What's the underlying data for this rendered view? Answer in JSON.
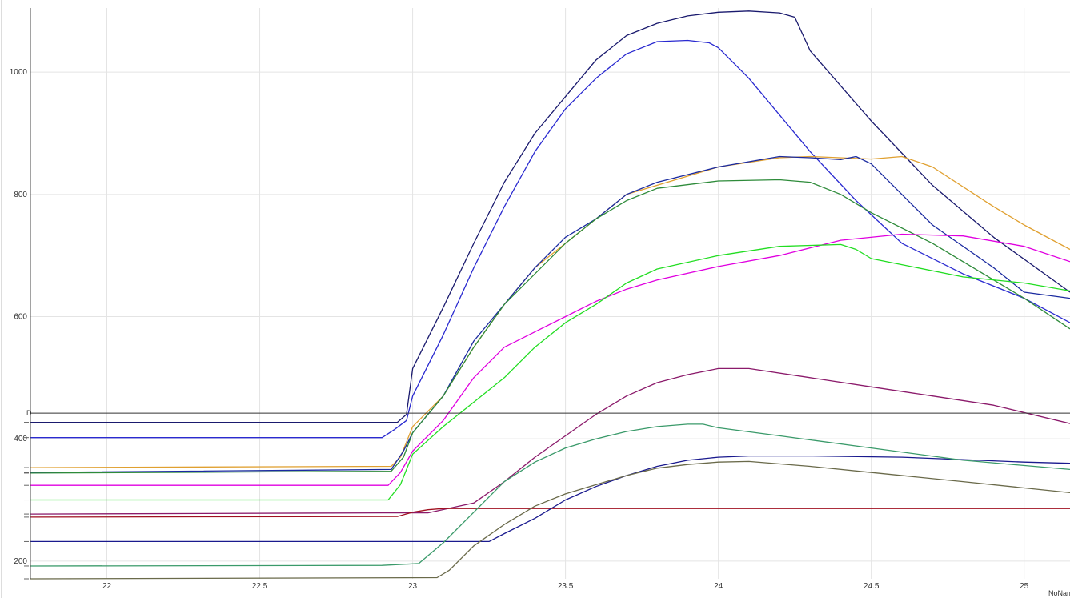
{
  "chart_data": {
    "type": "line",
    "xlim": [
      21.75,
      25.15
    ],
    "ylim": [
      171,
      1105
    ],
    "grid": true,
    "x_ticks": [
      22,
      22.5,
      23,
      23.5,
      24,
      24.5,
      25
    ],
    "y_ticks": [
      200,
      400,
      600,
      800,
      1000
    ],
    "x_tick_labels": [
      "22",
      "22.5",
      "23",
      "23.5",
      "24",
      "24.5",
      "25"
    ],
    "y_tick_labels": [
      "200",
      "400",
      "600",
      "800",
      "1000"
    ],
    "cursor_y": 442,
    "cursor_label": "D",
    "corner_label": "NoNam",
    "series": [
      {
        "color": "#1a1a6e",
        "points": [
          [
            21.75,
            427
          ],
          [
            22.95,
            427
          ],
          [
            22.98,
            440
          ],
          [
            23.0,
            515
          ],
          [
            23.1,
            615
          ],
          [
            23.2,
            720
          ],
          [
            23.3,
            820
          ],
          [
            23.4,
            900
          ],
          [
            23.5,
            960
          ],
          [
            23.6,
            1020
          ],
          [
            23.7,
            1060
          ],
          [
            23.8,
            1080
          ],
          [
            23.9,
            1092
          ],
          [
            24.0,
            1098
          ],
          [
            24.1,
            1100
          ],
          [
            24.2,
            1097
          ],
          [
            24.25,
            1090
          ],
          [
            24.3,
            1035
          ],
          [
            24.5,
            920
          ],
          [
            24.7,
            815
          ],
          [
            24.9,
            730
          ],
          [
            25.15,
            640
          ]
        ]
      },
      {
        "color": "#2a2ad0",
        "points": [
          [
            21.75,
            402
          ],
          [
            22.9,
            402
          ],
          [
            22.94,
            415
          ],
          [
            22.98,
            430
          ],
          [
            23.0,
            470
          ],
          [
            23.1,
            570
          ],
          [
            23.2,
            680
          ],
          [
            23.3,
            780
          ],
          [
            23.4,
            870
          ],
          [
            23.5,
            940
          ],
          [
            23.6,
            990
          ],
          [
            23.7,
            1030
          ],
          [
            23.8,
            1050
          ],
          [
            23.9,
            1052
          ],
          [
            23.97,
            1048
          ],
          [
            24.0,
            1040
          ],
          [
            24.1,
            990
          ],
          [
            24.2,
            930
          ],
          [
            24.3,
            870
          ],
          [
            24.45,
            790
          ],
          [
            24.6,
            720
          ],
          [
            24.8,
            670
          ],
          [
            25.0,
            630
          ],
          [
            25.15,
            590
          ]
        ]
      },
      {
        "color": "#e0a030",
        "points": [
          [
            21.75,
            353
          ],
          [
            22.93,
            355
          ],
          [
            22.96,
            370
          ],
          [
            23.0,
            420
          ],
          [
            23.1,
            470
          ],
          [
            23.2,
            550
          ],
          [
            23.3,
            620
          ],
          [
            23.4,
            680
          ],
          [
            23.5,
            720
          ],
          [
            23.6,
            760
          ],
          [
            23.7,
            800
          ],
          [
            23.8,
            815
          ],
          [
            24.0,
            845
          ],
          [
            24.2,
            860
          ],
          [
            24.3,
            862
          ],
          [
            24.5,
            858
          ],
          [
            24.6,
            862
          ],
          [
            24.7,
            845
          ],
          [
            24.9,
            780
          ],
          [
            25.0,
            750
          ],
          [
            25.15,
            710
          ]
        ]
      },
      {
        "color": "#1a2aa0",
        "points": [
          [
            21.75,
            345
          ],
          [
            22.93,
            350
          ],
          [
            22.97,
            380
          ],
          [
            23.0,
            410
          ],
          [
            23.1,
            470
          ],
          [
            23.2,
            560
          ],
          [
            23.3,
            620
          ],
          [
            23.4,
            680
          ],
          [
            23.5,
            730
          ],
          [
            23.6,
            760
          ],
          [
            23.7,
            800
          ],
          [
            23.8,
            820
          ],
          [
            24.0,
            845
          ],
          [
            24.2,
            862
          ],
          [
            24.3,
            860
          ],
          [
            24.4,
            857
          ],
          [
            24.45,
            862
          ],
          [
            24.5,
            850
          ],
          [
            24.7,
            750
          ],
          [
            24.9,
            680
          ],
          [
            25.0,
            640
          ],
          [
            25.15,
            630
          ]
        ]
      },
      {
        "color": "#2e8b3a",
        "points": [
          [
            21.75,
            344
          ],
          [
            22.93,
            347
          ],
          [
            22.97,
            370
          ],
          [
            23.0,
            410
          ],
          [
            23.1,
            470
          ],
          [
            23.2,
            550
          ],
          [
            23.3,
            620
          ],
          [
            23.4,
            670
          ],
          [
            23.5,
            720
          ],
          [
            23.6,
            760
          ],
          [
            23.7,
            790
          ],
          [
            23.8,
            810
          ],
          [
            24.0,
            822
          ],
          [
            24.2,
            824
          ],
          [
            24.3,
            820
          ],
          [
            24.4,
            800
          ],
          [
            24.5,
            770
          ],
          [
            24.7,
            720
          ],
          [
            24.9,
            660
          ],
          [
            25.0,
            630
          ],
          [
            25.15,
            580
          ]
        ]
      },
      {
        "color": "#e000e0",
        "points": [
          [
            21.75,
            324
          ],
          [
            22.92,
            324
          ],
          [
            22.96,
            345
          ],
          [
            23.0,
            380
          ],
          [
            23.1,
            430
          ],
          [
            23.2,
            500
          ],
          [
            23.3,
            550
          ],
          [
            23.4,
            575
          ],
          [
            23.5,
            600
          ],
          [
            23.6,
            625
          ],
          [
            23.7,
            645
          ],
          [
            23.8,
            660
          ],
          [
            24.0,
            682
          ],
          [
            24.2,
            700
          ],
          [
            24.4,
            725
          ],
          [
            24.6,
            735
          ],
          [
            24.8,
            732
          ],
          [
            25.0,
            715
          ],
          [
            25.15,
            690
          ]
        ]
      },
      {
        "color": "#22dd22",
        "points": [
          [
            21.75,
            300
          ],
          [
            22.92,
            300
          ],
          [
            22.96,
            325
          ],
          [
            23.0,
            375
          ],
          [
            23.1,
            420
          ],
          [
            23.2,
            460
          ],
          [
            23.3,
            500
          ],
          [
            23.4,
            550
          ],
          [
            23.5,
            590
          ],
          [
            23.6,
            620
          ],
          [
            23.7,
            655
          ],
          [
            23.8,
            678
          ],
          [
            24.0,
            700
          ],
          [
            24.2,
            715
          ],
          [
            24.4,
            718
          ],
          [
            24.45,
            710
          ],
          [
            24.5,
            695
          ],
          [
            24.6,
            685
          ],
          [
            24.8,
            665
          ],
          [
            25.0,
            655
          ],
          [
            25.15,
            642
          ]
        ]
      },
      {
        "color": "#8b1a6b",
        "points": [
          [
            21.75,
            277
          ],
          [
            22.9,
            279
          ],
          [
            23.05,
            279
          ],
          [
            23.2,
            295
          ],
          [
            23.3,
            330
          ],
          [
            23.4,
            370
          ],
          [
            23.5,
            405
          ],
          [
            23.6,
            440
          ],
          [
            23.7,
            470
          ],
          [
            23.8,
            492
          ],
          [
            23.9,
            505
          ],
          [
            24.0,
            515
          ],
          [
            24.1,
            515
          ],
          [
            24.3,
            500
          ],
          [
            24.5,
            485
          ],
          [
            24.7,
            470
          ],
          [
            24.9,
            455
          ],
          [
            25.15,
            425
          ]
        ]
      },
      {
        "color": "#a01020",
        "points": [
          [
            21.75,
            272
          ],
          [
            22.95,
            273
          ],
          [
            23.0,
            280
          ],
          [
            23.05,
            284
          ],
          [
            23.1,
            286
          ],
          [
            25.15,
            286
          ]
        ]
      },
      {
        "color": "#1a1a8e",
        "points": [
          [
            21.75,
            232
          ],
          [
            23.2,
            232
          ],
          [
            23.25,
            232
          ],
          [
            23.3,
            245
          ],
          [
            23.4,
            270
          ],
          [
            23.5,
            300
          ],
          [
            23.6,
            322
          ],
          [
            23.7,
            340
          ],
          [
            23.8,
            355
          ],
          [
            23.9,
            365
          ],
          [
            24.0,
            370
          ],
          [
            24.1,
            372
          ],
          [
            24.3,
            372
          ],
          [
            24.6,
            370
          ],
          [
            24.8,
            366
          ],
          [
            25.0,
            362
          ],
          [
            25.15,
            360
          ]
        ]
      },
      {
        "color": "#3a9a6a",
        "points": [
          [
            21.75,
            192
          ],
          [
            22.9,
            193
          ],
          [
            23.02,
            196
          ],
          [
            23.1,
            230
          ],
          [
            23.2,
            280
          ],
          [
            23.3,
            330
          ],
          [
            23.4,
            362
          ],
          [
            23.5,
            385
          ],
          [
            23.6,
            400
          ],
          [
            23.7,
            412
          ],
          [
            23.8,
            420
          ],
          [
            23.9,
            424
          ],
          [
            23.95,
            424
          ],
          [
            24.0,
            418
          ],
          [
            24.2,
            405
          ],
          [
            24.5,
            385
          ],
          [
            24.8,
            365
          ],
          [
            25.15,
            350
          ]
        ]
      },
      {
        "color": "#6a6a4a",
        "points": [
          [
            21.75,
            171
          ],
          [
            23.08,
            173
          ],
          [
            23.12,
            185
          ],
          [
            23.2,
            225
          ],
          [
            23.3,
            260
          ],
          [
            23.4,
            290
          ],
          [
            23.5,
            310
          ],
          [
            23.6,
            325
          ],
          [
            23.7,
            340
          ],
          [
            23.8,
            352
          ],
          [
            23.9,
            358
          ],
          [
            24.0,
            362
          ],
          [
            24.1,
            363
          ],
          [
            24.3,
            355
          ],
          [
            24.5,
            345
          ],
          [
            24.8,
            330
          ],
          [
            25.15,
            312
          ]
        ]
      }
    ]
  }
}
